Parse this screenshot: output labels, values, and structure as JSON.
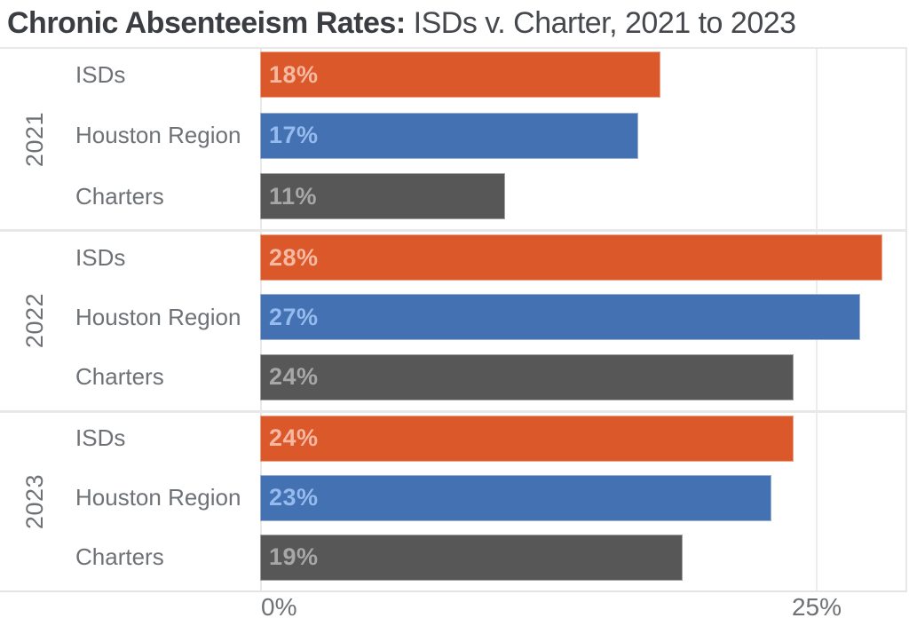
{
  "title": {
    "bold": "Chronic Absenteeism Rates:",
    "regular": "ISDs v. Charter, 2021 to 2023"
  },
  "chart_data": {
    "type": "bar",
    "orientation": "horizontal",
    "title": "Chronic Absenteeism Rates: ISDs v. Charter, 2021 to 2023",
    "groups": [
      "2021",
      "2022",
      "2023"
    ],
    "categories": [
      "ISDs",
      "Houston Region",
      "Charters"
    ],
    "series": [
      {
        "year": "2021",
        "values": [
          18,
          17,
          11
        ],
        "labels": [
          "18%",
          "17%",
          "11%"
        ]
      },
      {
        "year": "2022",
        "values": [
          28,
          27,
          24
        ],
        "labels": [
          "28%",
          "27%",
          "24%"
        ]
      },
      {
        "year": "2023",
        "values": [
          24,
          23,
          19
        ],
        "labels": [
          "24%",
          "23%",
          "19%"
        ]
      }
    ],
    "value_suffix": "%",
    "x_axis": {
      "tick_values": [
        0,
        25
      ],
      "tick_labels": [
        "0%",
        "25%"
      ],
      "range": [
        0,
        29.2
      ],
      "grid": true
    },
    "legend": "none",
    "bar_colors": {
      "ISDs": "#DB582B",
      "Houston Region": "#4471B2",
      "Charters": "#575757"
    },
    "value_label_colors": {
      "ISDs": "#F5B9A2",
      "Houston Region": "#95BAEE",
      "Charters": "#A7A7A7"
    },
    "accent_colors": {
      "grid_line": "#ECECEC",
      "axis_line": "#E9E9E9",
      "label_text": "#6E7276",
      "title_text": "#3A3D42"
    }
  }
}
